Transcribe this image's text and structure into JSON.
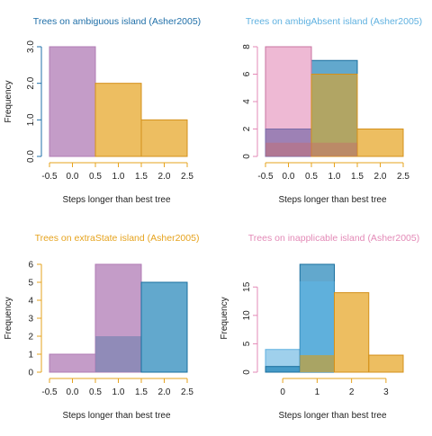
{
  "colors": {
    "purple": "#b07bb5",
    "blue": "#1f83b8",
    "lightblue": "#5fb1e0",
    "orange": "#e6a31e",
    "pink": "#e38ab7"
  },
  "chart_data": [
    {
      "type": "bar",
      "title": "Trees on ambiguous island (Asher2005)",
      "title_color": "#1f6fa8",
      "xlabel": "Steps longer than best tree",
      "ylabel": "Frequency",
      "xlim": [
        -0.5,
        2.5
      ],
      "ylim": [
        0,
        3
      ],
      "xticks": [
        "-0.5",
        "0.0",
        "0.5",
        "1.0",
        "1.5",
        "2.0",
        "2.5"
      ],
      "xtick_values": [
        -0.5,
        0,
        0.5,
        1,
        1.5,
        2,
        2.5
      ],
      "yticks": [
        "0.0",
        "1.0",
        "2.0",
        "3.0"
      ],
      "ytick_values": [
        0,
        1,
        2,
        3
      ],
      "ytick_rotate": true,
      "y_axis_color": "#1f6fa8",
      "bars": [
        {
          "x0": -0.5,
          "x1": 0.5,
          "value": 3,
          "fill": "#b07bb5",
          "opacity": 0.75,
          "stroke": "#b07bb5"
        },
        {
          "x0": 0.5,
          "x1": 1.5,
          "value": 2,
          "fill": "#e6a31e",
          "opacity": 0.7,
          "stroke": "#d4901a"
        },
        {
          "x0": 1.5,
          "x1": 2.5,
          "value": 1,
          "fill": "#e6a31e",
          "opacity": 0.7,
          "stroke": "#d4901a"
        }
      ]
    },
    {
      "type": "bar",
      "title": "Trees on ambigAbsent island (Asher2005)",
      "title_color": "#5fb1e0",
      "xlabel": "Steps longer than best tree",
      "ylabel": "",
      "xlim": [
        -0.5,
        2.5
      ],
      "ylim": [
        0,
        8
      ],
      "xticks": [
        "-0.5",
        "0.0",
        "0.5",
        "1.0",
        "1.5",
        "2.0",
        "2.5"
      ],
      "xtick_values": [
        -0.5,
        0,
        0.5,
        1,
        1.5,
        2,
        2.5
      ],
      "yticks": [
        "0",
        "2",
        "4",
        "6",
        "8"
      ],
      "ytick_values": [
        0,
        2,
        4,
        6,
        8
      ],
      "ytick_rotate": true,
      "y_axis_color": "#e38ab7",
      "bars": [
        {
          "x0": 0.5,
          "x1": 1.5,
          "value": 7,
          "fill": "#1f83b8",
          "opacity": 0.7,
          "stroke": "#1a6f9e"
        },
        {
          "x0": -0.5,
          "x1": 0.5,
          "value": 8,
          "fill": "#e38ab7",
          "opacity": 0.6,
          "stroke": "#c873a0"
        },
        {
          "x0": -0.5,
          "x1": 0.5,
          "value": 2,
          "fill": "#7a6aa8",
          "opacity": 0.7,
          "stroke": "#7a6aa8"
        },
        {
          "x0": 0.5,
          "x1": 1.5,
          "value": 6,
          "fill": "#e6a31e",
          "opacity": 0.6,
          "stroke": "#d4901a"
        },
        {
          "x0": 1.5,
          "x1": 2.5,
          "value": 2,
          "fill": "#e6a31e",
          "opacity": 0.7,
          "stroke": "#d4901a"
        },
        {
          "x0": -0.5,
          "x1": 1.5,
          "value": 1,
          "fill": "#c86a6a",
          "opacity": 0.45,
          "stroke": "none"
        }
      ]
    },
    {
      "type": "bar",
      "title": "Trees on extraState island (Asher2005)",
      "title_color": "#e6a31e",
      "xlabel": "Steps longer than best tree",
      "ylabel": "Frequency",
      "xlim": [
        -0.5,
        2.5
      ],
      "ylim": [
        0,
        6
      ],
      "xticks": [
        "-0.5",
        "0.0",
        "0.5",
        "1.0",
        "1.5",
        "2.0",
        "2.5"
      ],
      "xtick_values": [
        -0.5,
        0,
        0.5,
        1,
        1.5,
        2,
        2.5
      ],
      "yticks": [
        "0",
        "1",
        "2",
        "3",
        "4",
        "5",
        "6"
      ],
      "ytick_values": [
        0,
        1,
        2,
        3,
        4,
        5,
        6
      ],
      "ytick_rotate": false,
      "y_axis_color": "#e6a31e",
      "bars": [
        {
          "x0": -0.5,
          "x1": 0.5,
          "value": 1,
          "fill": "#b07bb5",
          "opacity": 0.75,
          "stroke": "#b07bb5"
        },
        {
          "x0": 0.5,
          "x1": 1.5,
          "value": 6,
          "fill": "#b07bb5",
          "opacity": 0.75,
          "stroke": "#b07bb5"
        },
        {
          "x0": 0.5,
          "x1": 1.5,
          "value": 2,
          "fill": "#7a84b0",
          "opacity": 0.7,
          "stroke": "none"
        },
        {
          "x0": 1.5,
          "x1": 2.5,
          "value": 5,
          "fill": "#1f83b8",
          "opacity": 0.7,
          "stroke": "#1a6f9e"
        }
      ]
    },
    {
      "type": "bar",
      "title": "Trees on inapplicable island (Asher2005)",
      "title_color": "#e38ab7",
      "xlabel": "Steps longer than best tree",
      "ylabel": "Frequency",
      "xlim": [
        -0.5,
        3.5
      ],
      "ylim": [
        0,
        19
      ],
      "xticks": [
        "0",
        "1",
        "2",
        "3"
      ],
      "xtick_values": [
        0,
        1,
        2,
        3
      ],
      "yticks": [
        "0",
        "5",
        "10",
        "15"
      ],
      "ytick_values": [
        0,
        5,
        10,
        15
      ],
      "ytick_rotate": true,
      "y_axis_color": "#e38ab7",
      "bars": [
        {
          "x0": -0.5,
          "x1": 0.5,
          "value": 4,
          "fill": "#5fb1e0",
          "opacity": 0.6,
          "stroke": "#5fb1e0"
        },
        {
          "x0": -0.5,
          "x1": 0.5,
          "value": 1,
          "fill": "#1f83b8",
          "opacity": 0.7,
          "stroke": "#1a6f9e"
        },
        {
          "x0": 0.5,
          "x1": 1.5,
          "value": 19,
          "fill": "#1f83b8",
          "opacity": 0.7,
          "stroke": "#1a6f9e"
        },
        {
          "x0": 0.5,
          "x1": 1.5,
          "value": 16,
          "fill": "#5fb1e0",
          "opacity": 0.8,
          "stroke": "none"
        },
        {
          "x0": 0.5,
          "x1": 1.5,
          "value": 3,
          "fill": "#c9a030",
          "opacity": 0.7,
          "stroke": "none"
        },
        {
          "x0": 1.5,
          "x1": 2.5,
          "value": 14,
          "fill": "#e6a31e",
          "opacity": 0.7,
          "stroke": "#d4901a"
        },
        {
          "x0": 2.5,
          "x1": 3.5,
          "value": 3,
          "fill": "#e6a31e",
          "opacity": 0.7,
          "stroke": "#d4901a"
        }
      ]
    }
  ]
}
